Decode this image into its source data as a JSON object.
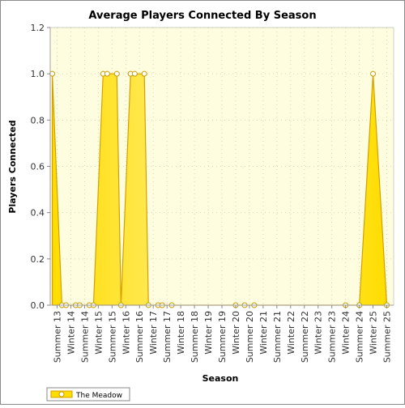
{
  "chart_data": {
    "type": "area",
    "title": "Average Players Connected By Season",
    "xlabel": "Season",
    "ylabel": "Players Connected",
    "ylim": [
      0,
      1.2
    ],
    "yticks": [
      "0.0",
      "0.2",
      "0.4",
      "0.6",
      "0.8",
      "1.0",
      "1.2"
    ],
    "grid": true,
    "legend_position": "bottom-left",
    "categories": [
      "Summer 13",
      "Winter 14",
      "Summer 14",
      "Winter 15",
      "Summer 15",
      "Winter 16",
      "Summer 16",
      "Winter 17",
      "Summer 17",
      "Winter 18",
      "Summer 18",
      "Winter 19",
      "Summer 19",
      "Winter 20",
      "Summer 20",
      "Winter 21",
      "Summer 21",
      "Winter 22",
      "Summer 22",
      "Winter 23",
      "Summer 23",
      "Winter 24",
      "Summer 24",
      "Winter 25",
      "Summer 25"
    ],
    "series": [
      {
        "name": "The Meadow",
        "points": [
          {
            "x": "Summer 13",
            "y": 1.0
          },
          {
            "x": "Summer 13",
            "y": 0.0
          },
          {
            "x": "Winter 14",
            "y": 0.0
          },
          {
            "x": "Winter 14",
            "y": 0.0
          },
          {
            "x": "Summer 14",
            "y": 0.0
          },
          {
            "x": "Summer 14",
            "y": 0.0
          },
          {
            "x": "Winter 15",
            "y": 0.0
          },
          {
            "x": "Winter 15",
            "y": 1.0
          },
          {
            "x": "Summer 15",
            "y": 1.0
          },
          {
            "x": "Summer 15",
            "y": 1.0
          },
          {
            "x": "Winter 16",
            "y": 0.0
          },
          {
            "x": "Winter 16",
            "y": 1.0
          },
          {
            "x": "Summer 16",
            "y": 1.0
          },
          {
            "x": "Summer 16",
            "y": 1.0
          },
          {
            "x": "Winter 17",
            "y": 0.0
          },
          {
            "x": "Winter 17",
            "y": 0.0
          },
          {
            "x": "Summer 17",
            "y": 0.0
          },
          {
            "x": "Summer 17",
            "y": 0.0
          },
          {
            "x": "Winter 20",
            "y": 0.0
          },
          {
            "x": "Summer 20",
            "y": 0.0
          },
          {
            "x": "Summer 20",
            "y": 0.0
          },
          {
            "x": "Winter 24",
            "y": 0.0
          },
          {
            "x": "Summer 24",
            "y": 0.0
          },
          {
            "x": "Winter 25",
            "y": 1.0
          },
          {
            "x": "Summer 25",
            "y": 0.0
          }
        ]
      }
    ]
  },
  "colors": {
    "plot_background": "#fffde0",
    "area_fill": "#ffdd00",
    "area_fill_highlight": "#fff088",
    "area_stroke": "#d4a000",
    "marker_stroke": "#c89a00",
    "marker_fill": "#ffffff",
    "grid": "#d8d8b0",
    "axis": "#888888",
    "text": "#000000",
    "tick_text": "#333333"
  }
}
